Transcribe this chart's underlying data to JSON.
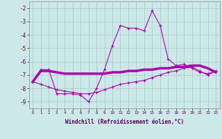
{
  "xlabel": "Windchill (Refroidissement éolien,°C)",
  "background_color": "#cce8e8",
  "grid_color": "#aacccc",
  "line_color": "#aa00aa",
  "x_hours": [
    0,
    1,
    2,
    3,
    4,
    5,
    6,
    7,
    8,
    9,
    10,
    11,
    12,
    13,
    14,
    15,
    16,
    17,
    18,
    19,
    20,
    21,
    22,
    23
  ],
  "series1": [
    -7.5,
    -6.6,
    -6.6,
    -8.4,
    -8.4,
    -8.4,
    -8.5,
    -9.0,
    -8.0,
    -6.6,
    -4.8,
    -3.3,
    -3.5,
    -3.5,
    -3.7,
    -2.2,
    -3.3,
    -5.8,
    -6.3,
    -6.2,
    -6.5,
    -6.8,
    -6.9,
    -6.7
  ],
  "series2": [
    -7.5,
    -6.7,
    -6.7,
    -6.8,
    -6.9,
    -6.9,
    -6.9,
    -6.9,
    -6.9,
    -6.9,
    -6.8,
    -6.8,
    -6.7,
    -6.7,
    -6.6,
    -6.6,
    -6.5,
    -6.5,
    -6.4,
    -6.4,
    -6.3,
    -6.3,
    -6.5,
    -6.8
  ],
  "series3": [
    -7.5,
    -7.7,
    -7.9,
    -8.1,
    -8.2,
    -8.3,
    -8.4,
    -8.4,
    -8.3,
    -8.1,
    -7.9,
    -7.7,
    -7.6,
    -7.5,
    -7.4,
    -7.2,
    -7.0,
    -6.8,
    -6.7,
    -6.5,
    -6.4,
    -6.7,
    -7.0,
    -6.7
  ],
  "ylim": [
    -9.5,
    -1.5
  ],
  "yticks": [
    -9,
    -8,
    -7,
    -6,
    -5,
    -4,
    -3,
    -2
  ],
  "xlim": [
    -0.5,
    23.5
  ]
}
